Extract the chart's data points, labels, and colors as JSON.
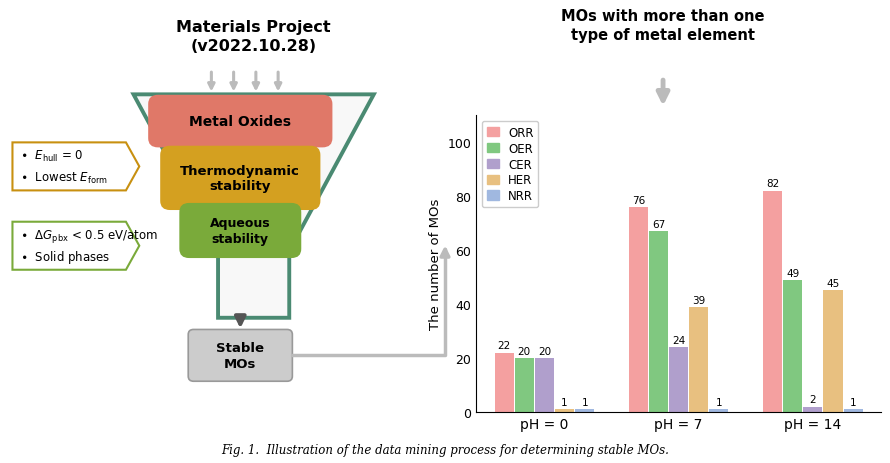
{
  "title_left": "Materials Project\n(v2022.10.28)",
  "title_right": "MOs with more than one\ntype of metal element",
  "caption": "Fig. 1.  Illustration of the data mining process for determining stable MOs.",
  "bar_groups": [
    "pH = 0",
    "pH = 7",
    "pH = 14"
  ],
  "bar_categories": [
    "ORR",
    "OER",
    "CER",
    "HER",
    "NRR"
  ],
  "bar_colors": [
    "#F4A0A0",
    "#80C880",
    "#B09FCC",
    "#E8C080",
    "#A0B8E0"
  ],
  "bar_data": {
    "ORR": [
      22,
      76,
      82
    ],
    "OER": [
      20,
      67,
      49
    ],
    "CER": [
      20,
      24,
      2
    ],
    "HER": [
      1,
      39,
      45
    ],
    "NRR": [
      1,
      1,
      1
    ]
  },
  "ylabel": "The number of MOs",
  "ylim": [
    0,
    110
  ],
  "yticks": [
    0,
    20,
    40,
    60,
    80,
    100
  ],
  "funnel_color": "#4A8A72",
  "metal_oxides_color": "#E07868",
  "thermo_color": "#D4A020",
  "aqueous_color": "#7AAA3A",
  "stable_box_color": "#CCCCCC",
  "arrow_gray": "#AAAAAA",
  "arrow_dark": "#666666",
  "label1_border": "#C89010",
  "label2_border": "#7AAA3A",
  "bg_color": "#FFFFFF"
}
